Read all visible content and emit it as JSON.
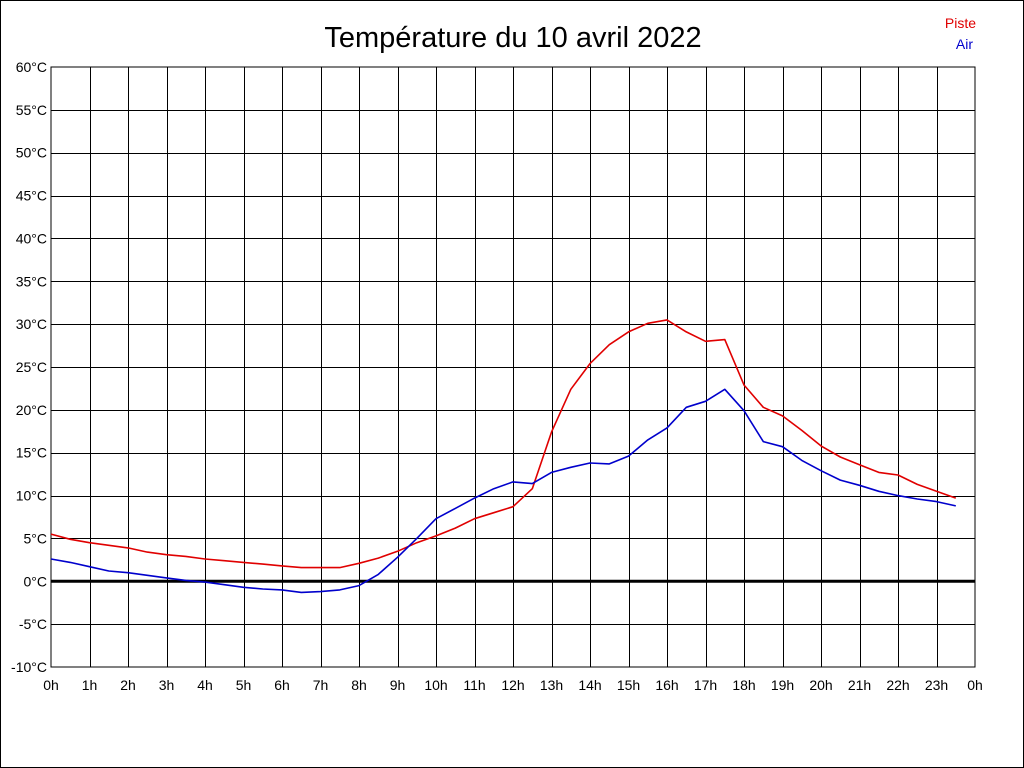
{
  "chart_data": {
    "type": "line",
    "title": "Température du 10 avril 2022",
    "xlabel": "",
    "ylabel": "",
    "xlim": [
      0,
      24
    ],
    "ylim": [
      -10,
      60
    ],
    "grid": true,
    "legend_position": "top-right",
    "x_ticks": [
      "0h",
      "1h",
      "2h",
      "3h",
      "4h",
      "5h",
      "6h",
      "7h",
      "8h",
      "9h",
      "10h",
      "11h",
      "12h",
      "13h",
      "14h",
      "15h",
      "16h",
      "17h",
      "18h",
      "19h",
      "20h",
      "21h",
      "22h",
      "23h",
      "0h"
    ],
    "y_ticks": [
      {
        "value": 60,
        "label": "60°C"
      },
      {
        "value": 55,
        "label": "55°C"
      },
      {
        "value": 50,
        "label": "50°C"
      },
      {
        "value": 45,
        "label": "45°C"
      },
      {
        "value": 40,
        "label": "40°C"
      },
      {
        "value": 35,
        "label": "35°C"
      },
      {
        "value": 30,
        "label": "30°C"
      },
      {
        "value": 25,
        "label": "25°C"
      },
      {
        "value": 20,
        "label": "20°C"
      },
      {
        "value": 15,
        "label": "15°C"
      },
      {
        "value": 10,
        "label": "10°C"
      },
      {
        "value": 5,
        "label": "5°C"
      },
      {
        "value": 0,
        "label": "0°C"
      },
      {
        "value": -5,
        "label": "-5°C"
      },
      {
        "value": -10,
        "label": "-10°C"
      }
    ],
    "x": [
      0,
      0.5,
      1,
      1.5,
      2,
      2.5,
      3,
      3.5,
      4,
      4.5,
      5,
      5.5,
      6,
      6.5,
      7,
      7.5,
      8,
      8.5,
      9,
      9.5,
      10,
      10.5,
      11,
      11.5,
      12,
      12.5,
      13,
      13.5,
      14,
      14.5,
      15,
      15.5,
      16,
      16.5,
      17,
      17.5,
      18,
      18.5,
      19,
      19.5,
      20,
      20.5,
      21,
      21.5,
      22,
      22.5,
      23,
      23.5
    ],
    "series": [
      {
        "name": "Piste",
        "color": "#e00000",
        "values": [
          5.5,
          4.9,
          4.5,
          4.2,
          3.9,
          3.4,
          3.1,
          2.9,
          2.6,
          2.4,
          2.2,
          2.0,
          1.8,
          1.6,
          1.6,
          1.6,
          2.1,
          2.7,
          3.5,
          4.5,
          5.3,
          6.2,
          7.3,
          8.0,
          8.7,
          10.8,
          17.4,
          22.4,
          25.4,
          27.6,
          29.1,
          30.1,
          30.5,
          29.1,
          28.0,
          28.2,
          22.9,
          20.3,
          19.3,
          17.6,
          15.8,
          14.5,
          13.6,
          12.7,
          12.4,
          11.3,
          10.5,
          9.7
        ]
      },
      {
        "name": "Air",
        "color": "#0000cc",
        "values": [
          2.6,
          2.2,
          1.7,
          1.2,
          1.0,
          0.7,
          0.4,
          0.1,
          -0.1,
          -0.4,
          -0.7,
          -0.9,
          -1.0,
          -1.3,
          -1.2,
          -1.0,
          -0.5,
          0.8,
          2.8,
          5.0,
          7.3,
          8.5,
          9.7,
          10.8,
          11.6,
          11.4,
          12.7,
          13.3,
          13.8,
          13.7,
          14.6,
          16.5,
          17.9,
          20.3,
          21.0,
          22.4,
          19.9,
          16.3,
          15.7,
          14.1,
          12.9,
          11.8,
          11.2,
          10.5,
          10.0,
          9.6,
          9.3,
          8.8
        ]
      }
    ]
  }
}
